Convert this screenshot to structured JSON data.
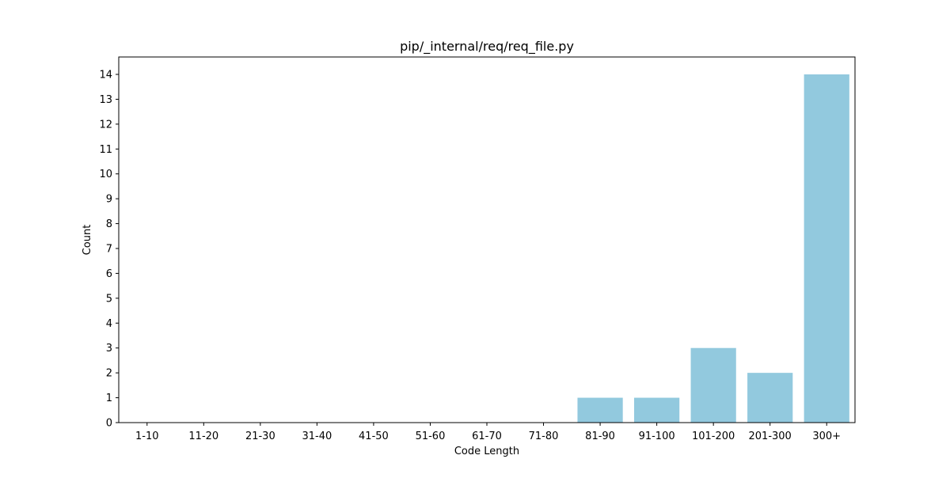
{
  "chart_data": {
    "type": "bar",
    "title": "pip/_internal/req/req_file.py",
    "xlabel": "Code Length",
    "ylabel": "Count",
    "categories": [
      "1-10",
      "11-20",
      "21-30",
      "31-40",
      "41-50",
      "51-60",
      "61-70",
      "71-80",
      "81-90",
      "91-100",
      "101-200",
      "201-300",
      "300+"
    ],
    "values": [
      0,
      0,
      0,
      0,
      0,
      0,
      0,
      0,
      1,
      1,
      3,
      2,
      14
    ],
    "ylim": [
      0,
      14.7
    ],
    "yticks": [
      0,
      1,
      2,
      3,
      4,
      5,
      6,
      7,
      8,
      9,
      10,
      11,
      12,
      13,
      14
    ],
    "bar_color": "#92c9de",
    "grid": false,
    "legend": "none"
  }
}
